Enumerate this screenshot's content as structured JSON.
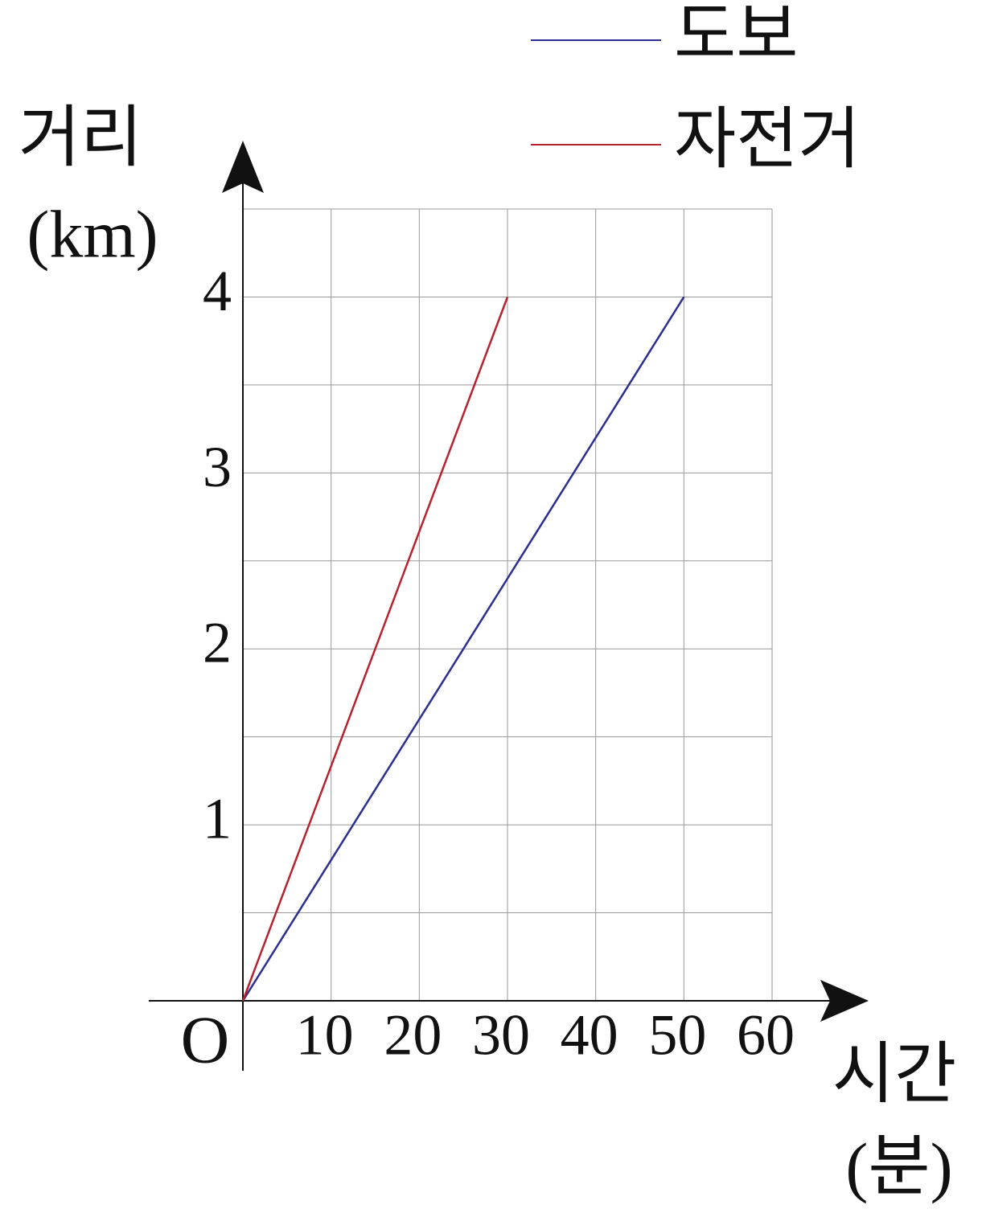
{
  "chart_data": {
    "type": "line",
    "ylabel": "거리",
    "ylabel_unit": "(km)",
    "xlabel": "시간",
    "xlabel_unit": "(분)",
    "origin_label": "O",
    "xlim": [
      0,
      60
    ],
    "ylim": [
      0,
      4.5
    ],
    "xticks": [
      10,
      20,
      30,
      40,
      50,
      60
    ],
    "yticks": [
      1,
      2,
      3,
      4
    ],
    "ygrid_lines": [
      0.5,
      1,
      1.5,
      2,
      2.5,
      3,
      3.5,
      4,
      4.5
    ],
    "grid": true,
    "legend": "top-right",
    "series": [
      {
        "name": "도보",
        "color": "#2b2f8f",
        "x": [
          0,
          50
        ],
        "values": [
          0,
          4
        ]
      },
      {
        "name": "자전거",
        "color": "#b8212e",
        "x": [
          0,
          30
        ],
        "values": [
          0,
          4
        ]
      }
    ]
  }
}
